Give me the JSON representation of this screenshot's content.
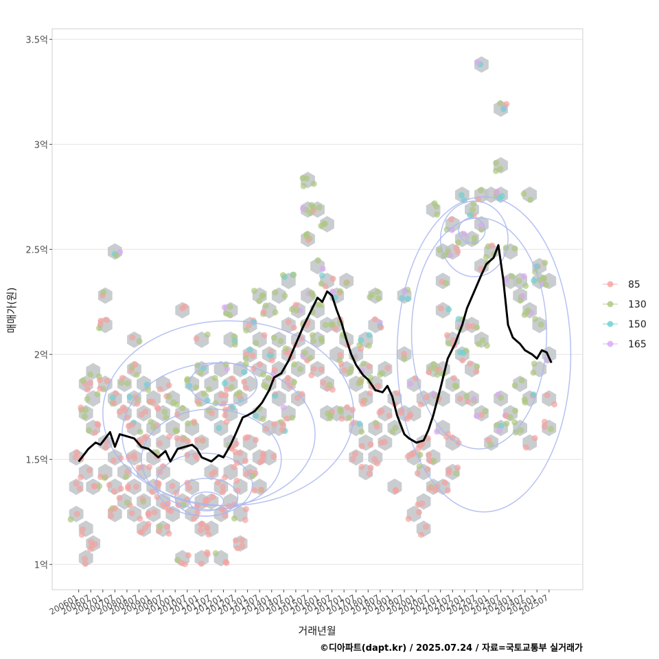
{
  "chart_data": {
    "type": "scatter",
    "ylabel": "매매가(원)",
    "xlabel": "거래년월",
    "caption": "©디아파트(dapt.kr) / 2025.07.24 / 자료=국토교통부 실거래가",
    "y_ticks": [
      {
        "value": 1.0,
        "label": "1억"
      },
      {
        "value": 1.5,
        "label": "1.5억"
      },
      {
        "value": 2.0,
        "label": "2억"
      },
      {
        "value": 2.5,
        "label": "2.5억"
      },
      {
        "value": 3.0,
        "label": "3억"
      },
      {
        "value": 3.5,
        "label": "3.5억"
      }
    ],
    "x_ticks": [
      "200601",
      "200607",
      "200701",
      "200707",
      "200801",
      "200807",
      "200901",
      "200907",
      "201001",
      "201007",
      "201101",
      "201107",
      "201201",
      "201207",
      "201301",
      "201307",
      "201401",
      "201407",
      "201501",
      "201507",
      "201601",
      "201607",
      "201701",
      "201707",
      "201801",
      "201807",
      "201901",
      "201907",
      "202001",
      "202007",
      "202101",
      "202107",
      "202201",
      "202207",
      "202301",
      "202307",
      "202401",
      "202407",
      "202501",
      "202507"
    ],
    "ylim": [
      0.88,
      3.55
    ],
    "xlim": [
      2004.9,
      2026.9
    ],
    "grid": true,
    "legend": {
      "position": "right",
      "entries": [
        {
          "name": "85",
          "color": "#f4a3a0"
        },
        {
          "name": "130",
          "color": "#aec77e"
        },
        {
          "name": "150",
          "color": "#6fd0d2"
        },
        {
          "name": "165",
          "color": "#d9a8f2"
        }
      ]
    },
    "colors": {
      "hexbin": "#bfc4c8",
      "trend_line": "#000000",
      "contour": "#a9b6ee"
    },
    "trend_line": {
      "label": "moving average",
      "points": [
        [
          2006.0,
          1.49
        ],
        [
          2006.2,
          1.52
        ],
        [
          2006.4,
          1.55
        ],
        [
          2006.7,
          1.58
        ],
        [
          2006.9,
          1.57
        ],
        [
          2007.1,
          1.6
        ],
        [
          2007.3,
          1.63
        ],
        [
          2007.5,
          1.56
        ],
        [
          2007.7,
          1.62
        ],
        [
          2008.0,
          1.61
        ],
        [
          2008.3,
          1.6
        ],
        [
          2008.6,
          1.56
        ],
        [
          2008.9,
          1.55
        ],
        [
          2009.1,
          1.53
        ],
        [
          2009.3,
          1.51
        ],
        [
          2009.6,
          1.54
        ],
        [
          2009.8,
          1.49
        ],
        [
          2010.1,
          1.55
        ],
        [
          2010.4,
          1.56
        ],
        [
          2010.7,
          1.57
        ],
        [
          2010.9,
          1.55
        ],
        [
          2011.1,
          1.51
        ],
        [
          2011.3,
          1.5
        ],
        [
          2011.5,
          1.49
        ],
        [
          2011.8,
          1.52
        ],
        [
          2012.0,
          1.51
        ],
        [
          2012.3,
          1.57
        ],
        [
          2012.5,
          1.62
        ],
        [
          2012.8,
          1.7
        ],
        [
          2013.0,
          1.71
        ],
        [
          2013.3,
          1.73
        ],
        [
          2013.6,
          1.77
        ],
        [
          2013.9,
          1.83
        ],
        [
          2014.1,
          1.89
        ],
        [
          2014.4,
          1.91
        ],
        [
          2014.7,
          1.97
        ],
        [
          2015.0,
          2.05
        ],
        [
          2015.3,
          2.13
        ],
        [
          2015.6,
          2.2
        ],
        [
          2015.9,
          2.27
        ],
        [
          2016.1,
          2.25
        ],
        [
          2016.3,
          2.3
        ],
        [
          2016.5,
          2.28
        ],
        [
          2016.7,
          2.21
        ],
        [
          2016.9,
          2.15
        ],
        [
          2017.1,
          2.07
        ],
        [
          2017.3,
          2.0
        ],
        [
          2017.5,
          1.95
        ],
        [
          2017.8,
          1.9
        ],
        [
          2018.0,
          1.88
        ],
        [
          2018.3,
          1.83
        ],
        [
          2018.6,
          1.82
        ],
        [
          2018.8,
          1.85
        ],
        [
          2019.0,
          1.8
        ],
        [
          2019.2,
          1.71
        ],
        [
          2019.5,
          1.62
        ],
        [
          2019.7,
          1.6
        ],
        [
          2020.0,
          1.58
        ],
        [
          2020.3,
          1.59
        ],
        [
          2020.5,
          1.64
        ],
        [
          2020.7,
          1.71
        ],
        [
          2021.0,
          1.84
        ],
        [
          2021.3,
          1.98
        ],
        [
          2021.6,
          2.05
        ],
        [
          2021.9,
          2.14
        ],
        [
          2022.1,
          2.22
        ],
        [
          2022.4,
          2.3
        ],
        [
          2022.7,
          2.38
        ],
        [
          2022.9,
          2.43
        ],
        [
          2023.2,
          2.46
        ],
        [
          2023.4,
          2.52
        ],
        [
          2023.6,
          2.36
        ],
        [
          2023.8,
          2.14
        ],
        [
          2024.0,
          2.08
        ],
        [
          2024.3,
          2.05
        ],
        [
          2024.5,
          2.02
        ],
        [
          2024.8,
          2.0
        ],
        [
          2025.0,
          1.98
        ],
        [
          2025.2,
          2.02
        ],
        [
          2025.4,
          2.01
        ],
        [
          2025.6,
          1.96
        ]
      ]
    },
    "hexbins": [
      [
        2005.9,
        1.51
      ],
      [
        2005.9,
        1.37
      ],
      [
        2005.9,
        1.24
      ],
      [
        2006.3,
        1.03
      ],
      [
        2006.3,
        1.17
      ],
      [
        2006.3,
        1.44
      ],
      [
        2006.3,
        1.72
      ],
      [
        2006.3,
        1.86
      ],
      [
        2006.6,
        1.92
      ],
      [
        2006.6,
        1.1
      ],
      [
        2006.6,
        1.37
      ],
      [
        2006.6,
        1.65
      ],
      [
        2006.6,
        1.79
      ],
      [
        2007.1,
        2.28
      ],
      [
        2007.1,
        2.14
      ],
      [
        2007.1,
        1.86
      ],
      [
        2007.1,
        1.58
      ],
      [
        2007.1,
        1.44
      ],
      [
        2007.5,
        2.49
      ],
      [
        2007.5,
        1.51
      ],
      [
        2007.5,
        1.37
      ],
      [
        2007.5,
        1.24
      ],
      [
        2007.5,
        1.79
      ],
      [
        2007.9,
        1.86
      ],
      [
        2007.9,
        1.72
      ],
      [
        2007.9,
        1.44
      ],
      [
        2007.9,
        1.3
      ],
      [
        2008.3,
        2.07
      ],
      [
        2008.3,
        1.93
      ],
      [
        2008.3,
        1.79
      ],
      [
        2008.3,
        1.65
      ],
      [
        2008.3,
        1.51
      ],
      [
        2008.3,
        1.37
      ],
      [
        2008.3,
        1.24
      ],
      [
        2008.7,
        1.86
      ],
      [
        2008.7,
        1.72
      ],
      [
        2008.7,
        1.58
      ],
      [
        2008.7,
        1.44
      ],
      [
        2008.7,
        1.3
      ],
      [
        2008.7,
        1.17
      ],
      [
        2009.1,
        1.79
      ],
      [
        2009.1,
        1.65
      ],
      [
        2009.1,
        1.51
      ],
      [
        2009.1,
        1.37
      ],
      [
        2009.1,
        1.24
      ],
      [
        2009.5,
        1.86
      ],
      [
        2009.5,
        1.72
      ],
      [
        2009.5,
        1.58
      ],
      [
        2009.5,
        1.44
      ],
      [
        2009.5,
        1.3
      ],
      [
        2009.5,
        1.17
      ],
      [
        2009.9,
        1.79
      ],
      [
        2009.9,
        1.65
      ],
      [
        2009.9,
        1.37
      ],
      [
        2009.9,
        1.24
      ],
      [
        2010.3,
        2.21
      ],
      [
        2010.3,
        1.72
      ],
      [
        2010.3,
        1.58
      ],
      [
        2010.3,
        1.3
      ],
      [
        2010.3,
        1.03
      ],
      [
        2010.7,
        1.86
      ],
      [
        2010.7,
        1.65
      ],
      [
        2010.7,
        1.51
      ],
      [
        2010.7,
        1.37
      ],
      [
        2010.7,
        1.24
      ],
      [
        2011.1,
        2.07
      ],
      [
        2011.1,
        1.93
      ],
      [
        2011.1,
        1.79
      ],
      [
        2011.1,
        1.58
      ],
      [
        2011.1,
        1.3
      ],
      [
        2011.1,
        1.17
      ],
      [
        2011.1,
        1.03
      ],
      [
        2011.5,
        1.86
      ],
      [
        2011.5,
        1.72
      ],
      [
        2011.5,
        1.44
      ],
      [
        2011.5,
        1.3
      ],
      [
        2011.5,
        1.17
      ],
      [
        2011.9,
        1.93
      ],
      [
        2011.9,
        1.79
      ],
      [
        2011.9,
        1.65
      ],
      [
        2011.9,
        1.37
      ],
      [
        2011.9,
        1.24
      ],
      [
        2011.9,
        1.03
      ],
      [
        2012.3,
        2.21
      ],
      [
        2012.3,
        2.07
      ],
      [
        2012.3,
        1.86
      ],
      [
        2012.3,
        1.72
      ],
      [
        2012.3,
        1.58
      ],
      [
        2012.3,
        1.44
      ],
      [
        2012.3,
        1.3
      ],
      [
        2012.7,
        1.93
      ],
      [
        2012.7,
        1.79
      ],
      [
        2012.7,
        1.51
      ],
      [
        2012.7,
        1.37
      ],
      [
        2012.7,
        1.24
      ],
      [
        2012.7,
        1.1
      ],
      [
        2013.1,
        2.14
      ],
      [
        2013.1,
        2.0
      ],
      [
        2013.1,
        1.86
      ],
      [
        2013.1,
        1.58
      ],
      [
        2013.1,
        1.44
      ],
      [
        2013.5,
        2.28
      ],
      [
        2013.5,
        2.07
      ],
      [
        2013.5,
        1.93
      ],
      [
        2013.5,
        1.72
      ],
      [
        2013.5,
        1.51
      ],
      [
        2013.5,
        1.37
      ],
      [
        2013.9,
        2.21
      ],
      [
        2013.9,
        2.0
      ],
      [
        2013.9,
        1.86
      ],
      [
        2013.9,
        1.65
      ],
      [
        2013.9,
        1.51
      ],
      [
        2014.3,
        2.28
      ],
      [
        2014.3,
        2.07
      ],
      [
        2014.3,
        1.93
      ],
      [
        2014.3,
        1.79
      ],
      [
        2014.3,
        1.65
      ],
      [
        2014.7,
        2.35
      ],
      [
        2014.7,
        2.14
      ],
      [
        2014.7,
        2.0
      ],
      [
        2014.7,
        1.86
      ],
      [
        2014.7,
        1.72
      ],
      [
        2015.1,
        2.21
      ],
      [
        2015.1,
        2.07
      ],
      [
        2015.1,
        1.93
      ],
      [
        2015.1,
        1.79
      ],
      [
        2015.5,
        2.83
      ],
      [
        2015.5,
        2.69
      ],
      [
        2015.5,
        2.55
      ],
      [
        2015.5,
        2.28
      ],
      [
        2015.5,
        2.14
      ],
      [
        2015.5,
        2.0
      ],
      [
        2015.9,
        2.69
      ],
      [
        2015.9,
        2.42
      ],
      [
        2015.9,
        2.21
      ],
      [
        2015.9,
        2.07
      ],
      [
        2015.9,
        1.93
      ],
      [
        2016.3,
        2.62
      ],
      [
        2016.3,
        2.35
      ],
      [
        2016.3,
        2.14
      ],
      [
        2016.3,
        1.86
      ],
      [
        2016.3,
        1.72
      ],
      [
        2016.7,
        2.28
      ],
      [
        2016.7,
        2.14
      ],
      [
        2016.7,
        2.0
      ],
      [
        2016.7,
        1.72
      ],
      [
        2017.1,
        2.35
      ],
      [
        2017.1,
        2.07
      ],
      [
        2017.1,
        1.93
      ],
      [
        2017.1,
        1.72
      ],
      [
        2017.5,
        2.0
      ],
      [
        2017.5,
        1.86
      ],
      [
        2017.5,
        1.65
      ],
      [
        2017.5,
        1.51
      ],
      [
        2017.9,
        2.07
      ],
      [
        2017.9,
        1.93
      ],
      [
        2017.9,
        1.79
      ],
      [
        2017.9,
        1.58
      ],
      [
        2017.9,
        1.44
      ],
      [
        2018.3,
        2.28
      ],
      [
        2018.3,
        2.14
      ],
      [
        2018.3,
        1.86
      ],
      [
        2018.3,
        1.65
      ],
      [
        2018.3,
        1.51
      ],
      [
        2018.7,
        1.93
      ],
      [
        2018.7,
        1.72
      ],
      [
        2018.7,
        1.58
      ],
      [
        2019.1,
        1.79
      ],
      [
        2019.1,
        1.65
      ],
      [
        2019.1,
        1.37
      ],
      [
        2019.5,
        2.28
      ],
      [
        2019.5,
        2.0
      ],
      [
        2019.5,
        1.72
      ],
      [
        2019.9,
        1.86
      ],
      [
        2019.9,
        1.72
      ],
      [
        2019.9,
        1.51
      ],
      [
        2019.9,
        1.24
      ],
      [
        2020.3,
        1.79
      ],
      [
        2020.3,
        1.58
      ],
      [
        2020.3,
        1.44
      ],
      [
        2020.3,
        1.3
      ],
      [
        2020.3,
        1.17
      ],
      [
        2020.7,
        2.69
      ],
      [
        2020.7,
        1.93
      ],
      [
        2020.7,
        1.79
      ],
      [
        2020.7,
        1.51
      ],
      [
        2020.7,
        1.37
      ],
      [
        2021.1,
        2.49
      ],
      [
        2021.1,
        2.35
      ],
      [
        2021.1,
        2.21
      ],
      [
        2021.1,
        1.93
      ],
      [
        2021.1,
        1.79
      ],
      [
        2021.1,
        1.65
      ],
      [
        2021.1,
        1.37
      ],
      [
        2021.5,
        2.62
      ],
      [
        2021.5,
        2.49
      ],
      [
        2021.5,
        2.07
      ],
      [
        2021.5,
        1.86
      ],
      [
        2021.5,
        1.58
      ],
      [
        2021.5,
        1.44
      ],
      [
        2021.9,
        2.76
      ],
      [
        2021.9,
        2.55
      ],
      [
        2021.9,
        2.14
      ],
      [
        2021.9,
        2.0
      ],
      [
        2021.9,
        1.79
      ],
      [
        2022.3,
        2.69
      ],
      [
        2022.3,
        2.55
      ],
      [
        2022.3,
        2.14
      ],
      [
        2022.3,
        1.93
      ],
      [
        2022.3,
        1.79
      ],
      [
        2022.7,
        3.38
      ],
      [
        2022.7,
        2.76
      ],
      [
        2022.7,
        2.62
      ],
      [
        2022.7,
        2.42
      ],
      [
        2022.7,
        2.07
      ],
      [
        2022.7,
        1.72
      ],
      [
        2023.1,
        2.76
      ],
      [
        2023.1,
        2.49
      ],
      [
        2023.1,
        1.58
      ],
      [
        2023.5,
        3.17
      ],
      [
        2023.5,
        2.9
      ],
      [
        2023.5,
        2.76
      ],
      [
        2023.5,
        1.79
      ],
      [
        2023.5,
        1.65
      ],
      [
        2023.9,
        2.49
      ],
      [
        2023.9,
        2.35
      ],
      [
        2023.9,
        1.72
      ],
      [
        2024.3,
        2.35
      ],
      [
        2024.3,
        2.28
      ],
      [
        2024.3,
        1.86
      ],
      [
        2024.3,
        1.65
      ],
      [
        2024.7,
        2.76
      ],
      [
        2024.7,
        2.21
      ],
      [
        2024.7,
        1.79
      ],
      [
        2024.7,
        1.58
      ],
      [
        2025.1,
        2.42
      ],
      [
        2025.1,
        2.35
      ],
      [
        2025.1,
        2.14
      ],
      [
        2025.1,
        1.93
      ],
      [
        2025.5,
        2.35
      ],
      [
        2025.5,
        2.0
      ],
      [
        2025.5,
        1.79
      ],
      [
        2025.5,
        1.65
      ]
    ]
  }
}
